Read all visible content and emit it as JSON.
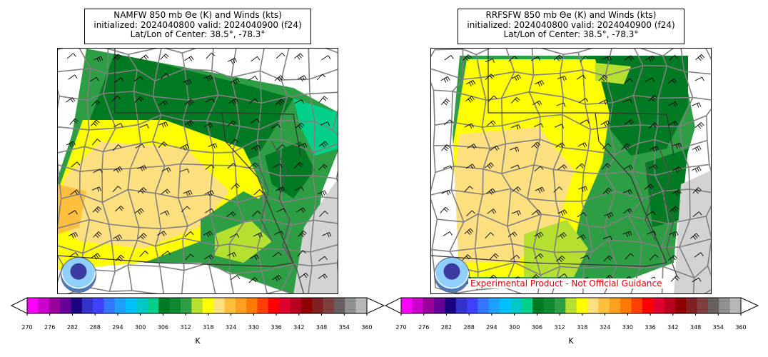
{
  "panels": [
    {
      "title_lines": [
        "NAMFW 850 mb Θe (K) and Winds (kts)",
        "initialized: 2024040800 valid: 2024040900 (f24)",
        "Lat/Lon of Center: 38.5°, -78.3°"
      ],
      "logo_text": "NOAA"
    },
    {
      "title_lines": [
        "RRFSFW 850 mb Θe (K) and Winds (kts)",
        "initialized: 2024040800 valid: 2024040900 (f24)",
        "Lat/Lon of Center: 38.5°, -78.3°"
      ],
      "logo_text": "NOAA",
      "disclaimer": "Experimental Product - Not Official Guidance"
    }
  ],
  "colorbar": {
    "unit": "K",
    "ticks": [
      "270",
      "276",
      "282",
      "288",
      "294",
      "300",
      "306",
      "312",
      "318",
      "324",
      "330",
      "336",
      "342",
      "348",
      "354",
      "360"
    ],
    "colors": [
      "#ff00ff",
      "#cc00cc",
      "#990099",
      "#660099",
      "#1a0080",
      "#3333cc",
      "#4040ff",
      "#3377ff",
      "#1ea0ff",
      "#00c0ff",
      "#00c8c8",
      "#00d08a",
      "#007a22",
      "#108a30",
      "#2e9e45",
      "#b5e030",
      "#ffff00",
      "#ffe080",
      "#ffc040",
      "#ffa020",
      "#ff7a00",
      "#ff4000",
      "#ff0000",
      "#e00030",
      "#b80020",
      "#900000",
      "#802020",
      "#804040",
      "#686060",
      "#909090",
      "#b8b8b8"
    ],
    "under_color": "#ffffff",
    "over_color": "#ffffff"
  }
}
